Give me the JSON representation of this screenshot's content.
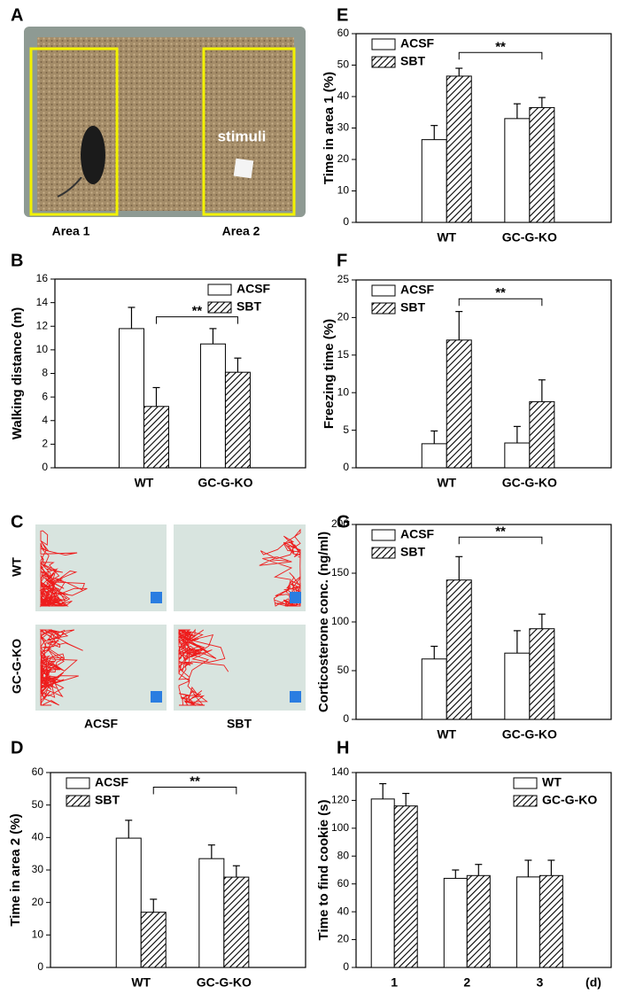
{
  "chart_data": [
    {
      "type": "bar",
      "panel_label": "B",
      "ylabel": "Walking distance (m)",
      "categories": [
        "WT",
        "GC-G-KO"
      ],
      "series": [
        {
          "name": "ACSF",
          "color": "#ffffff",
          "pattern": "none",
          "values": [
            11.8,
            10.5
          ],
          "errors": [
            1.8,
            1.3
          ]
        },
        {
          "name": "SBT",
          "color": "#000000",
          "pattern": "hatch",
          "values": [
            5.2,
            8.1
          ],
          "errors": [
            1.6,
            1.2
          ]
        }
      ],
      "ylim": [
        0,
        16
      ],
      "yticks": [
        0,
        2,
        4,
        6,
        8,
        10,
        12,
        14,
        16
      ],
      "legend": "upper right",
      "annotation": "**"
    },
    {
      "type": "bar",
      "panel_label": "D",
      "ylabel": "Time in area 2 (%)",
      "categories": [
        "WT",
        "GC-G-KO"
      ],
      "series": [
        {
          "name": "ACSF",
          "color": "#ffffff",
          "pattern": "none",
          "values": [
            39.8,
            33.5
          ],
          "errors": [
            5.5,
            4.2
          ]
        },
        {
          "name": "SBT",
          "color": "#000000",
          "pattern": "hatch",
          "values": [
            17,
            27.8
          ],
          "errors": [
            4,
            3.5
          ]
        }
      ],
      "ylim": [
        0,
        60
      ],
      "yticks": [
        0,
        10,
        20,
        30,
        40,
        50,
        60
      ],
      "legend": "upper left",
      "annotation": "**"
    },
    {
      "type": "bar",
      "panel_label": "E",
      "ylabel": "Time in area 1 (%)",
      "categories": [
        "WT",
        "GC-G-KO"
      ],
      "series": [
        {
          "name": "ACSF",
          "color": "#ffffff",
          "pattern": "none",
          "values": [
            26.3,
            33
          ],
          "errors": [
            4.5,
            4.7
          ]
        },
        {
          "name": "SBT",
          "color": "#000000",
          "pattern": "hatch",
          "values": [
            46.5,
            36.5
          ],
          "errors": [
            2.5,
            3.2
          ]
        }
      ],
      "ylim": [
        0,
        60
      ],
      "yticks": [
        0,
        10,
        20,
        30,
        40,
        50,
        60
      ],
      "legend": "upper left",
      "annotation": "**"
    },
    {
      "type": "bar",
      "panel_label": "F",
      "ylabel": "Freezing time (%)",
      "categories": [
        "WT",
        "GC-G-KO"
      ],
      "series": [
        {
          "name": "ACSF",
          "color": "#ffffff",
          "pattern": "none",
          "values": [
            3.2,
            3.3
          ],
          "errors": [
            1.7,
            2.2
          ]
        },
        {
          "name": "SBT",
          "color": "#000000",
          "pattern": "hatch",
          "values": [
            17,
            8.8
          ],
          "errors": [
            3.8,
            2.9
          ]
        }
      ],
      "ylim": [
        0,
        25
      ],
      "yticks": [
        0,
        5,
        10,
        15,
        20,
        25
      ],
      "legend": "upper left",
      "annotation": "**"
    },
    {
      "type": "bar",
      "panel_label": "G",
      "ylabel": "Corticosterone conc. (ng/ml)",
      "categories": [
        "WT",
        "GC-G-KO"
      ],
      "series": [
        {
          "name": "ACSF",
          "color": "#ffffff",
          "pattern": "none",
          "values": [
            62,
            68
          ],
          "errors": [
            13,
            23
          ]
        },
        {
          "name": "SBT",
          "color": "#000000",
          "pattern": "hatch",
          "values": [
            143,
            93
          ],
          "errors": [
            24,
            15
          ]
        }
      ],
      "ylim": [
        0,
        200
      ],
      "yticks": [
        0,
        50,
        100,
        150,
        200
      ],
      "legend": "upper left",
      "annotation": "**"
    },
    {
      "type": "bar",
      "panel_label": "H",
      "ylabel": "Time to find cookie (s)",
      "xlabel": "(d)",
      "categories": [
        "1",
        "2",
        "3"
      ],
      "series": [
        {
          "name": "WT",
          "color": "#ffffff",
          "pattern": "none",
          "values": [
            121,
            64,
            65
          ],
          "errors": [
            11,
            6,
            12
          ]
        },
        {
          "name": "GC-G-KO",
          "color": "#000000",
          "pattern": "hatch",
          "values": [
            116,
            66,
            66
          ],
          "errors": [
            9,
            8,
            11
          ]
        }
      ],
      "ylim": [
        0,
        140
      ],
      "yticks": [
        0,
        20,
        40,
        60,
        80,
        100,
        120,
        140
      ],
      "legend": "upper right"
    }
  ],
  "photo": {
    "panel_label": "A",
    "stimulus_label": "stimuli",
    "areas": [
      "Area 1",
      "Area 2"
    ]
  },
  "tracks": {
    "panel_label": "C",
    "rows": [
      "WT",
      "GC-G-KO"
    ],
    "columns": [
      "ACSF",
      "SBT"
    ]
  }
}
